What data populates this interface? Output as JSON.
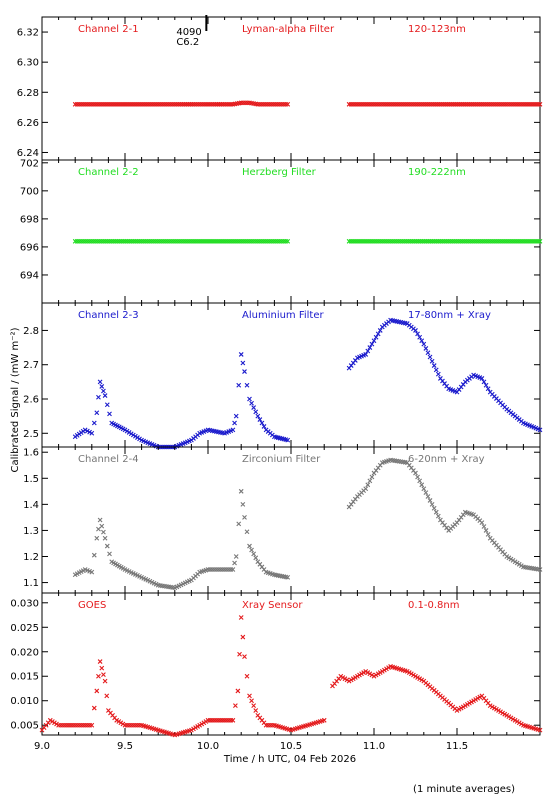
{
  "figure": {
    "xlabel": "Time / h UTC, 04 Feb 2026",
    "ylabel": "Calibrated Signal / (mW m⁻²)",
    "footnote": "(1 minute averages)",
    "flare_marker": {
      "x": 9.99,
      "count": "4090",
      "class": "C6.2"
    }
  },
  "chart_data": [
    {
      "type": "scatter",
      "channel": "Channel 2-1",
      "filter": "Lyman-alpha Filter",
      "band": "120-123nm",
      "color": "#e41a1c",
      "x_range": [
        9.0,
        12.0
      ],
      "ylim": [
        6.235,
        6.33
      ],
      "yticks": [
        6.24,
        6.26,
        6.28,
        6.3,
        6.32
      ],
      "ytick_labels": [
        "6.24",
        "6.26",
        "6.28",
        "6.30",
        "6.32"
      ],
      "series": [
        {
          "segments": [
            {
              "x": [
                9.2,
                9.5,
                9.8,
                10.0,
                10.15,
                10.2,
                10.25,
                10.3,
                10.48
              ],
              "y": [
                6.272,
                6.272,
                6.272,
                6.272,
                6.272,
                6.273,
                6.273,
                6.272,
                6.272
              ]
            },
            {
              "x": [
                10.85,
                11.2,
                11.6,
                12.0
              ],
              "y": [
                6.272,
                6.272,
                6.272,
                6.272
              ]
            }
          ]
        }
      ]
    },
    {
      "type": "scatter",
      "channel": "Channel 2-2",
      "filter": "Herzberg Filter",
      "band": "190-222nm",
      "color": "#22dd22",
      "x_range": [
        9.0,
        12.0
      ],
      "ylim": [
        692.0,
        702.2
      ],
      "yticks": [
        694,
        696,
        698,
        700,
        702
      ],
      "ytick_labels": [
        "694",
        "696",
        "698",
        "700",
        "702"
      ],
      "series": [
        {
          "segments": [
            {
              "x": [
                9.2,
                9.6,
                10.0,
                10.48
              ],
              "y": [
                696.4,
                696.4,
                696.4,
                696.4
              ]
            },
            {
              "x": [
                10.85,
                11.4,
                12.0
              ],
              "y": [
                696.4,
                696.4,
                696.4
              ]
            }
          ]
        }
      ]
    },
    {
      "type": "scatter",
      "channel": "Channel 2-3",
      "filter": "Aluminium Filter",
      "band": "17-80nm + Xray",
      "color": "#1a1acc",
      "x_range": [
        9.0,
        12.0
      ],
      "ylim": [
        2.46,
        2.88
      ],
      "yticks": [
        2.5,
        2.6,
        2.7,
        2.8
      ],
      "ytick_labels": [
        "2.5",
        "2.6",
        "2.7",
        "2.8"
      ],
      "series": [
        {
          "segments": [
            {
              "x": [
                9.2,
                9.26,
                9.3,
                9.33,
                9.35,
                9.38,
                9.42,
                9.5,
                9.6,
                9.7,
                9.8,
                9.9,
                9.95,
                10.0,
                10.1,
                10.15,
                10.17,
                10.2,
                10.22,
                10.25,
                10.3,
                10.35,
                10.4,
                10.48
              ],
              "y": [
                2.49,
                2.51,
                2.5,
                2.56,
                2.65,
                2.61,
                2.53,
                2.51,
                2.48,
                2.46,
                2.46,
                2.48,
                2.5,
                2.51,
                2.5,
                2.51,
                2.55,
                2.73,
                2.68,
                2.6,
                2.55,
                2.51,
                2.49,
                2.48
              ]
            },
            {
              "x": [
                10.85,
                10.9,
                10.95,
                11.0,
                11.05,
                11.1,
                11.2,
                11.25,
                11.3,
                11.35,
                11.4,
                11.45,
                11.5,
                11.55,
                11.6,
                11.65,
                11.7,
                11.8,
                11.9,
                12.0
              ],
              "y": [
                2.69,
                2.72,
                2.73,
                2.77,
                2.81,
                2.83,
                2.82,
                2.8,
                2.76,
                2.71,
                2.66,
                2.63,
                2.62,
                2.65,
                2.67,
                2.66,
                2.62,
                2.57,
                2.53,
                2.51
              ]
            }
          ]
        }
      ]
    },
    {
      "type": "scatter",
      "channel": "Channel 2-4",
      "filter": "Zirconium Filter",
      "band": "6-20nm + Xray",
      "color": "#777777",
      "x_range": [
        9.0,
        12.0
      ],
      "ylim": [
        1.06,
        1.62
      ],
      "yticks": [
        1.1,
        1.2,
        1.3,
        1.4,
        1.5,
        1.6
      ],
      "ytick_labels": [
        "1.1",
        "1.2",
        "1.3",
        "1.4",
        "1.5",
        "1.6"
      ],
      "series": [
        {
          "segments": [
            {
              "x": [
                9.2,
                9.26,
                9.3,
                9.33,
                9.35,
                9.38,
                9.42,
                9.5,
                9.6,
                9.7,
                9.8,
                9.9,
                9.95,
                10.0,
                10.1,
                10.15,
                10.17,
                10.2,
                10.22,
                10.25,
                10.3,
                10.35,
                10.4,
                10.48
              ],
              "y": [
                1.13,
                1.15,
                1.14,
                1.27,
                1.34,
                1.27,
                1.18,
                1.15,
                1.12,
                1.09,
                1.08,
                1.11,
                1.14,
                1.15,
                1.15,
                1.15,
                1.2,
                1.45,
                1.35,
                1.24,
                1.18,
                1.14,
                1.13,
                1.12
              ]
            },
            {
              "x": [
                10.85,
                10.9,
                10.95,
                11.0,
                11.05,
                11.1,
                11.2,
                11.25,
                11.3,
                11.35,
                11.4,
                11.45,
                11.5,
                11.55,
                11.6,
                11.65,
                11.7,
                11.8,
                11.9,
                12.0
              ],
              "y": [
                1.39,
                1.43,
                1.46,
                1.52,
                1.56,
                1.57,
                1.56,
                1.52,
                1.46,
                1.4,
                1.34,
                1.3,
                1.33,
                1.37,
                1.36,
                1.33,
                1.27,
                1.2,
                1.16,
                1.15
              ]
            }
          ]
        }
      ]
    },
    {
      "type": "scatter",
      "channel": "GOES",
      "filter": "Xray Sensor",
      "band": "0.1-0.8nm",
      "color": "#e41a1c",
      "x_range": [
        9.0,
        12.0
      ],
      "ylim": [
        0.003,
        0.032
      ],
      "yticks": [
        0.005,
        0.01,
        0.015,
        0.02,
        0.025,
        0.03
      ],
      "ytick_labels": [
        "0.005",
        "0.010",
        "0.015",
        "0.020",
        "0.025",
        "0.030"
      ],
      "xticks": [
        9.0,
        9.5,
        10.0,
        10.5,
        11.0,
        11.5
      ],
      "xtick_labels": [
        "9.0",
        "9.5",
        "10.0",
        "10.5",
        "11.0",
        "11.5"
      ],
      "series": [
        {
          "segments": [
            {
              "x": [
                9.0,
                9.05,
                9.1,
                9.15,
                9.2,
                9.25,
                9.3,
                9.33,
                9.35,
                9.38,
                9.4,
                9.45,
                9.5,
                9.6,
                9.7,
                9.8,
                9.9,
                9.95,
                10.0,
                10.1,
                10.15,
                10.18,
                10.2,
                10.22,
                10.25,
                10.3,
                10.35,
                10.4,
                10.5,
                10.6,
                10.7
              ],
              "y": [
                0.004,
                0.006,
                0.005,
                0.005,
                0.005,
                0.005,
                0.005,
                0.012,
                0.018,
                0.014,
                0.008,
                0.006,
                0.005,
                0.005,
                0.004,
                0.003,
                0.004,
                0.005,
                0.006,
                0.006,
                0.006,
                0.012,
                0.027,
                0.019,
                0.011,
                0.007,
                0.005,
                0.005,
                0.004,
                0.005,
                0.006
              ]
            },
            {
              "x": [
                10.75,
                10.8,
                10.85,
                10.9,
                10.95,
                11.0,
                11.05,
                11.1,
                11.2,
                11.3,
                11.4,
                11.5,
                11.55,
                11.6,
                11.65,
                11.7,
                11.8,
                11.9,
                12.0
              ],
              "y": [
                0.013,
                0.015,
                0.014,
                0.015,
                0.016,
                0.015,
                0.016,
                0.017,
                0.016,
                0.014,
                0.011,
                0.008,
                0.009,
                0.01,
                0.011,
                0.009,
                0.007,
                0.005,
                0.004
              ]
            }
          ]
        }
      ]
    }
  ]
}
